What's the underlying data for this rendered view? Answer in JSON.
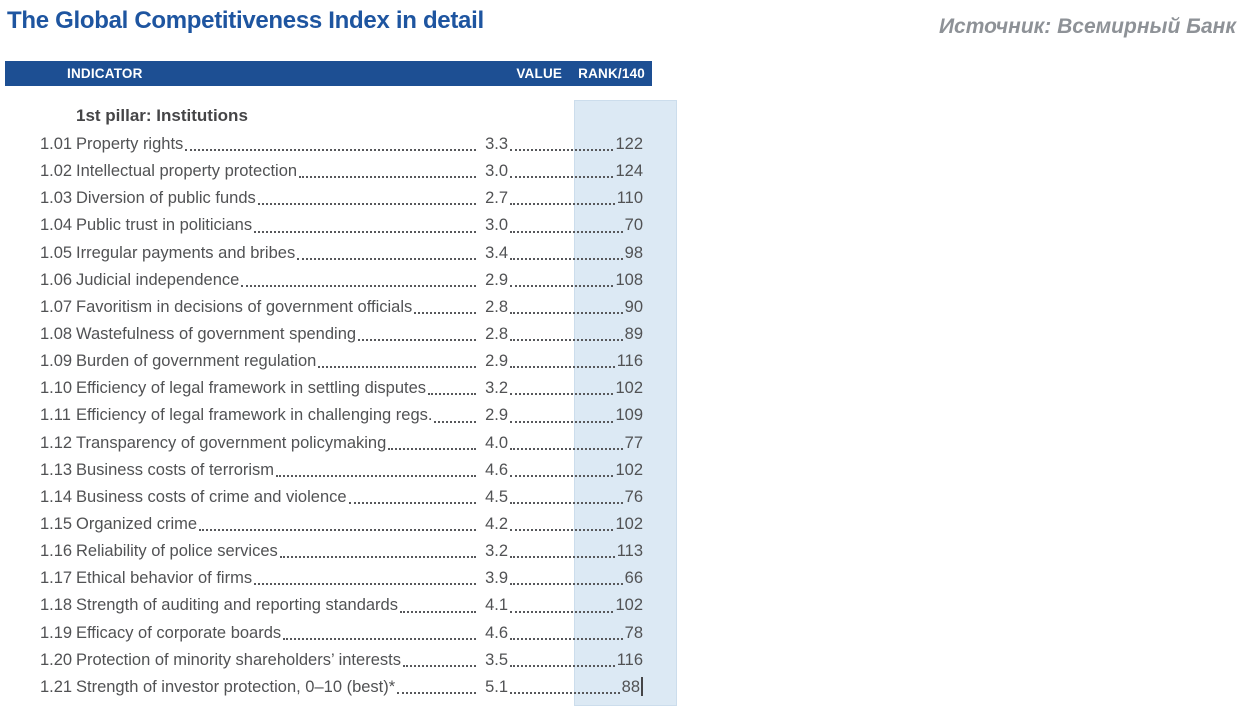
{
  "page": {
    "title": "The Global Competitiveness Index in detail",
    "source_note": "Источник: Всемирный Банк"
  },
  "table": {
    "columns": {
      "indicator": "INDICATOR",
      "value": "VALUE",
      "rank": "RANK/140"
    },
    "section_title": "1st pillar: Institutions",
    "rows": [
      {
        "num": "1.01",
        "name": "Property rights",
        "value": "3.3",
        "rank": "122"
      },
      {
        "num": "1.02",
        "name": "Intellectual property protection",
        "value": "3.0",
        "rank": "124"
      },
      {
        "num": "1.03",
        "name": "Diversion of public funds",
        "value": "2.7",
        "rank": "110"
      },
      {
        "num": "1.04",
        "name": "Public trust in politicians",
        "value": "3.0",
        "rank": "70"
      },
      {
        "num": "1.05",
        "name": "Irregular payments and bribes",
        "value": "3.4",
        "rank": "98"
      },
      {
        "num": "1.06",
        "name": "Judicial independence",
        "value": "2.9",
        "rank": "108"
      },
      {
        "num": "1.07",
        "name": "Favoritism in decisions of government officials",
        "value": "2.8",
        "rank": "90"
      },
      {
        "num": "1.08",
        "name": "Wastefulness of government spending",
        "value": "2.8",
        "rank": "89"
      },
      {
        "num": "1.09",
        "name": "Burden of government regulation",
        "value": "2.9",
        "rank": "116"
      },
      {
        "num": "1.10",
        "name": "Efficiency of legal framework in settling disputes",
        "value": "3.2",
        "rank": "102"
      },
      {
        "num": "1.11",
        "name": "Efficiency of legal framework in challenging regs.",
        "value": "2.9",
        "rank": "109"
      },
      {
        "num": "1.12",
        "name": "Transparency of government policymaking",
        "value": "4.0",
        "rank": "77"
      },
      {
        "num": "1.13",
        "name": "Business costs of terrorism",
        "value": "4.6",
        "rank": "102"
      },
      {
        "num": "1.14",
        "name": "Business costs of crime and violence",
        "value": "4.5",
        "rank": "76"
      },
      {
        "num": "1.15",
        "name": "Organized crime",
        "value": "4.2",
        "rank": "102"
      },
      {
        "num": "1.16",
        "name": "Reliability of police services",
        "value": "3.2",
        "rank": "113"
      },
      {
        "num": "1.17",
        "name": "Ethical behavior of firms",
        "value": "3.9",
        "rank": "66"
      },
      {
        "num": "1.18",
        "name": "Strength of auditing and reporting standards",
        "value": "4.1",
        "rank": "102"
      },
      {
        "num": "1.19",
        "name": "Efficacy of corporate boards",
        "value": "4.6",
        "rank": "78"
      },
      {
        "num": "1.20",
        "name": "Protection of minority shareholders’ interests",
        "value": "3.5",
        "rank": "116"
      },
      {
        "num": "1.21",
        "name": "Strength of investor protection, 0–10 (best)*",
        "value": "5.1",
        "rank": "88"
      }
    ],
    "text_cursor_after_last_rank": true
  },
  "colors": {
    "accent_blue": "#1d4f93",
    "title_blue": "#1e55a0",
    "highlight_blue": "#dce9f4",
    "text_gray": "#515254",
    "source_gray": "#8e9297"
  }
}
